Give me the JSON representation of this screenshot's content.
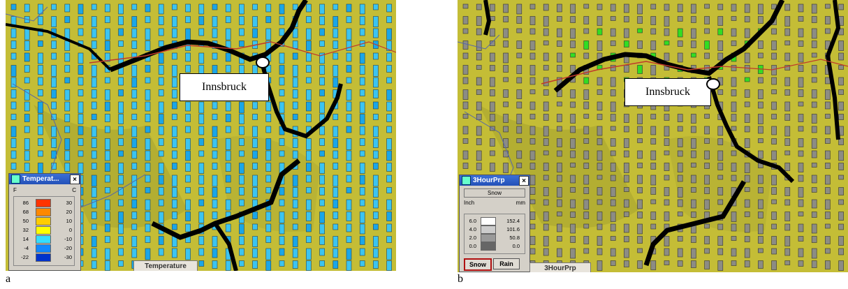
{
  "panel_a": {
    "city": "Innsbruck",
    "legend": {
      "title": "Temperat...",
      "unit_left": "F",
      "unit_right": "C",
      "f_values": [
        "86",
        "68",
        "50",
        "32",
        "14",
        "-4",
        "-22"
      ],
      "c_values": [
        "30",
        "20",
        "10",
        "0",
        "-10",
        "-20",
        "-30"
      ],
      "colors": [
        "#ff3300",
        "#ff8800",
        "#ffcc00",
        "#ffff00",
        "#33ddff",
        "#1188ff",
        "#0033cc"
      ]
    },
    "tab_label": "Temperature",
    "caption": "a"
  },
  "panel_b": {
    "city": "Innsbruck",
    "legend": {
      "title": "3HourPrp",
      "mode": "Snow",
      "unit_left": "Inch",
      "unit_right": "mm",
      "inch_values": [
        "6.0",
        "4.0",
        "2.0",
        "0.0"
      ],
      "mm_values": [
        "152.4",
        "101.6",
        "50.8",
        "0.0"
      ],
      "colors": [
        "#ffffff",
        "#cccccc",
        "#999999",
        "#666666"
      ]
    },
    "buttons": {
      "snow": "Snow",
      "rain": "Rain"
    },
    "tab_label": "3HourPrp",
    "caption": "b"
  }
}
